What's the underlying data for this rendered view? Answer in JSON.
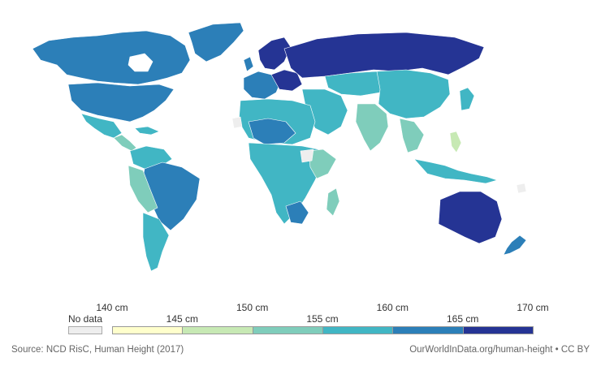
{
  "legend": {
    "no_data_label": "No data",
    "top_ticks": [
      "140 cm",
      "150 cm",
      "160 cm",
      "170 cm"
    ],
    "bottom_ticks": [
      "145 cm",
      "155 cm",
      "165 cm"
    ],
    "bins": [
      {
        "range": "140-145 cm",
        "color": "#ffffcc"
      },
      {
        "range": "145-150 cm",
        "color": "#c7e9b4"
      },
      {
        "range": "150-155 cm",
        "color": "#7fcdbb"
      },
      {
        "range": "155-160 cm",
        "color": "#41b6c4"
      },
      {
        "range": "160-165 cm",
        "color": "#2c7fb8"
      },
      {
        "range": "165-170 cm",
        "color": "#253494"
      }
    ],
    "no_data_color": "#eeeeee"
  },
  "footer": {
    "source": "Source: NCD RisC, Human Height (2017)",
    "credit": "OurWorldInData.org/human-height • CC BY"
  }
}
